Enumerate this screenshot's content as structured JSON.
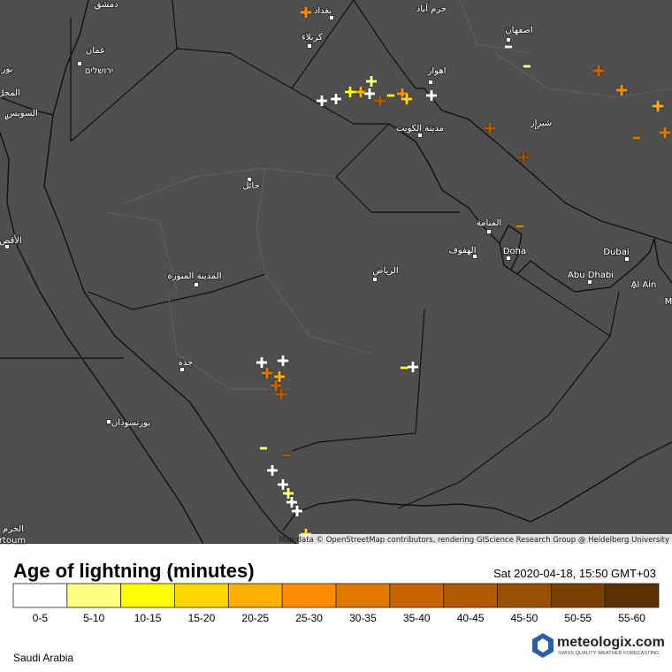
{
  "map": {
    "cities": [
      "دمشق",
      "بغداد",
      "خرم آباد",
      "كربلاء",
      "اصفهان",
      "عمان",
      "ירושלים",
      "بور",
      "اهواز",
      "المحل",
      "السويس",
      "شيراز",
      "مدينة الكويت",
      "حائل",
      "المنامة",
      "الأقص",
      "الهفوف",
      "Doha",
      "الرياض",
      "Dubai",
      "المدينة المنورة",
      "Abu Dhabi",
      "Al Ain",
      "M",
      "جدة",
      "بورتسودان",
      "الخرم",
      "rtoum"
    ],
    "attribution": "Map data © OpenStreetMap contributors, rendering GIScience Research Group @ Heidelberg University"
  },
  "legend": {
    "title": "Age of lightning (minutes)",
    "timestamp": "Sat 2020-04-18, 15:50 GMT+03",
    "items": [
      {
        "label": "0-5",
        "color": "#ffffff"
      },
      {
        "label": "5-10",
        "color": "#ffff80"
      },
      {
        "label": "10-15",
        "color": "#ffff00"
      },
      {
        "label": "15-20",
        "color": "#ffd700"
      },
      {
        "label": "20-25",
        "color": "#ffb000"
      },
      {
        "label": "25-30",
        "color": "#ff8c00"
      },
      {
        "label": "30-35",
        "color": "#e07800"
      },
      {
        "label": "35-40",
        "color": "#c86400"
      },
      {
        "label": "40-45",
        "color": "#b05a00"
      },
      {
        "label": "45-50",
        "color": "#985000"
      },
      {
        "label": "50-55",
        "color": "#7a4000"
      },
      {
        "label": "55-60",
        "color": "#5a3000"
      }
    ]
  },
  "brand": {
    "name": "meteologix.com",
    "tagline": "SWISS QUALITY WEATHER FORECASTING"
  },
  "region": "Saudi Arabia"
}
